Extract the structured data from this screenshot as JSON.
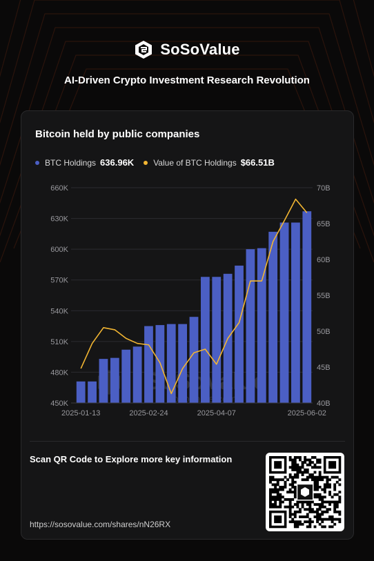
{
  "brand": {
    "name": "SoSoValue",
    "tagline": "AI-Driven Crypto Investment Research Revolution",
    "accent": "#e06a2a"
  },
  "card": {
    "title": "Bitcoin held by public companies",
    "scan_text": "Scan QR Code to Explore more key information",
    "url": "https://sosovalue.com/shares/nN26RX"
  },
  "legend": [
    {
      "label": "BTC Holdings",
      "value": "636.96K",
      "color": "#4b5fc4"
    },
    {
      "label": "Value of BTC Holdings",
      "value": "$66.51B",
      "color": "#f3b632"
    }
  ],
  "watermark": {
    "name": "SoSoValue",
    "url": "sosovalue.com"
  },
  "chart_data": {
    "type": "bar+line",
    "x_ticks": [
      "2025-01-13",
      "2025-02-24",
      "2025-04-07",
      "2025-06-02"
    ],
    "x": [
      "2025-01-13",
      "2025-01-20",
      "2025-01-27",
      "2025-02-03",
      "2025-02-10",
      "2025-02-17",
      "2025-02-24",
      "2025-03-03",
      "2025-03-10",
      "2025-03-17",
      "2025-03-24",
      "2025-03-31",
      "2025-04-07",
      "2025-04-14",
      "2025-04-21",
      "2025-04-28",
      "2025-05-05",
      "2025-05-12",
      "2025-05-19",
      "2025-05-26",
      "2025-06-02"
    ],
    "series": [
      {
        "name": "BTC Holdings",
        "type": "bar",
        "axis": "left",
        "color": "#4b5fc4",
        "values": [
          471,
          471,
          493,
          494,
          502,
          505,
          525,
          526,
          527,
          527,
          534,
          573,
          573,
          576,
          584,
          600,
          601,
          617,
          626,
          626,
          637
        ]
      },
      {
        "name": "Value of BTC Holdings",
        "type": "line",
        "axis": "right",
        "color": "#f3b632",
        "values": [
          44.8,
          48.3,
          50.5,
          50.2,
          49.0,
          48.3,
          48.1,
          45.6,
          41.3,
          44.8,
          47.0,
          47.5,
          45.4,
          49.0,
          51.2,
          57.0,
          57.0,
          62.5,
          65.4,
          68.4,
          66.5
        ]
      }
    ],
    "y_left": {
      "ticks": [
        "450K",
        "480K",
        "510K",
        "540K",
        "570K",
        "600K",
        "630K",
        "660K"
      ],
      "range": [
        450,
        660
      ]
    },
    "y_right": {
      "ticks": [
        "40B",
        "45B",
        "50B",
        "55B",
        "60B",
        "65B",
        "70B"
      ],
      "range": [
        40,
        70
      ]
    },
    "grid": true
  }
}
